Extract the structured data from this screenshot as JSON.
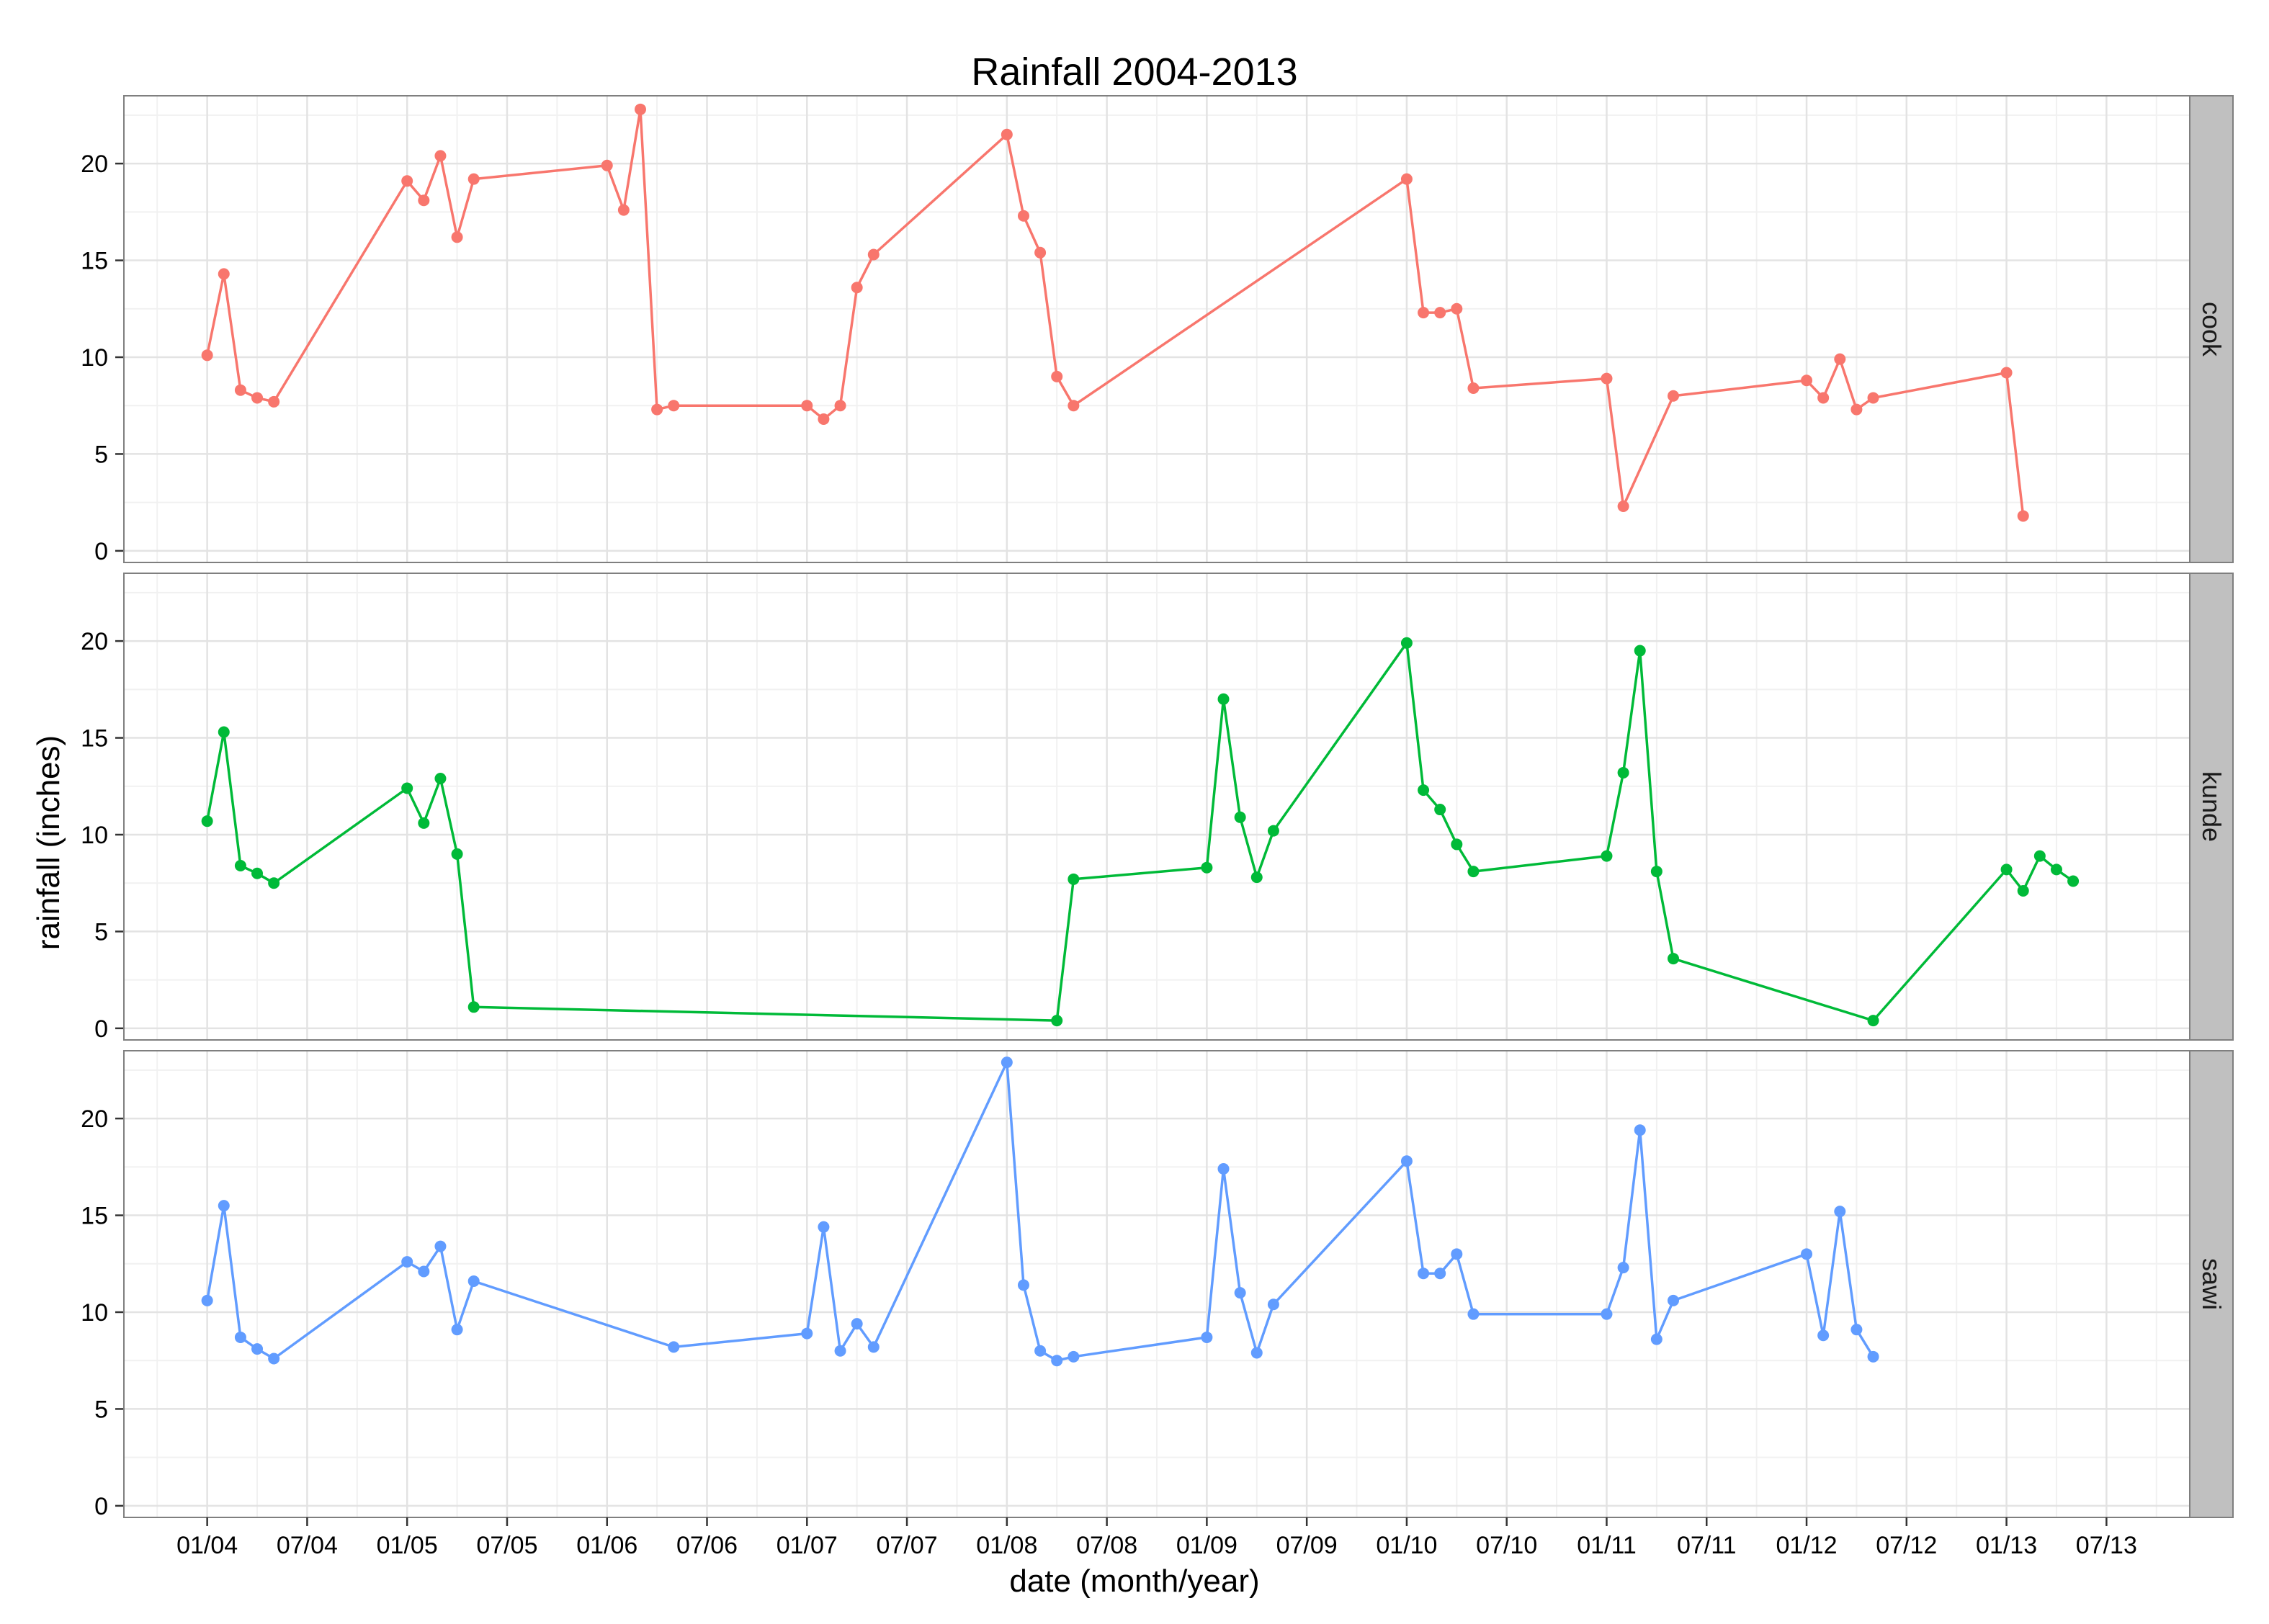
{
  "chart_data": {
    "type": "line",
    "title": "Rainfall 2004-2013",
    "xlabel": "date (month/year)",
    "ylabel": "rainfall (inches)",
    "x_tick_labels": [
      "01/04",
      "07/04",
      "01/05",
      "07/05",
      "01/06",
      "07/06",
      "01/07",
      "07/07",
      "01/08",
      "07/08",
      "01/09",
      "07/09",
      "01/10",
      "07/10",
      "01/11",
      "07/11",
      "01/12",
      "07/12",
      "01/13",
      "07/13"
    ],
    "x_tick_dates": [
      "2004-01",
      "2004-07",
      "2005-01",
      "2005-07",
      "2006-01",
      "2006-07",
      "2007-01",
      "2007-07",
      "2008-01",
      "2008-07",
      "2009-01",
      "2009-07",
      "2010-01",
      "2010-07",
      "2011-01",
      "2011-07",
      "2012-01",
      "2012-07",
      "2013-01",
      "2013-07"
    ],
    "xlim": [
      "2003-08",
      "2013-12"
    ],
    "ylim": [
      -0.6,
      23.5
    ],
    "y_ticks": [
      0,
      5,
      10,
      15,
      20
    ],
    "grid": true,
    "facets": "rows",
    "colors": {
      "cook": "#f8766d",
      "kunde": "#00ba38",
      "sawi": "#619cff",
      "strip": "#c0c0c0",
      "panel_border": "#7f7f7f",
      "grid_major": "#e3e3e3",
      "grid_minor": "#f1f1f1"
    },
    "series": [
      {
        "name": "cook",
        "points": [
          [
            "2004-01",
            10.1
          ],
          [
            "2004-02",
            14.3
          ],
          [
            "2004-03",
            8.3
          ],
          [
            "2004-04",
            7.9
          ],
          [
            "2004-05",
            7.7
          ],
          [
            "2005-01",
            19.1
          ],
          [
            "2005-02",
            18.1
          ],
          [
            "2005-03",
            20.4
          ],
          [
            "2005-04",
            16.2
          ],
          [
            "2005-05",
            19.2
          ],
          [
            "2006-01",
            19.9
          ],
          [
            "2006-02",
            17.6
          ],
          [
            "2006-03",
            22.8
          ],
          [
            "2006-04",
            7.3
          ],
          [
            "2006-05",
            7.5
          ],
          [
            "2007-01",
            7.5
          ],
          [
            "2007-02",
            6.8
          ],
          [
            "2007-03",
            7.5
          ],
          [
            "2007-04",
            13.6
          ],
          [
            "2007-05",
            15.3
          ],
          [
            "2008-01",
            21.5
          ],
          [
            "2008-02",
            17.3
          ],
          [
            "2008-03",
            15.4
          ],
          [
            "2008-04",
            9.0
          ],
          [
            "2008-05",
            7.5
          ],
          [
            "2010-01",
            19.2
          ],
          [
            "2010-02",
            12.3
          ],
          [
            "2010-03",
            12.3
          ],
          [
            "2010-04",
            12.5
          ],
          [
            "2010-05",
            8.4
          ],
          [
            "2011-01",
            8.9
          ],
          [
            "2011-02",
            2.3
          ],
          [
            "2011-05",
            8.0
          ],
          [
            "2012-01",
            8.8
          ],
          [
            "2012-02",
            7.9
          ],
          [
            "2012-03",
            9.9
          ],
          [
            "2012-04",
            7.3
          ],
          [
            "2012-05",
            7.9
          ],
          [
            "2013-01",
            9.2
          ],
          [
            "2013-02",
            1.8
          ]
        ]
      },
      {
        "name": "kunde",
        "points": [
          [
            "2004-01",
            10.7
          ],
          [
            "2004-02",
            15.3
          ],
          [
            "2004-03",
            8.4
          ],
          [
            "2004-04",
            8.0
          ],
          [
            "2004-05",
            7.5
          ],
          [
            "2005-01",
            12.4
          ],
          [
            "2005-02",
            10.6
          ],
          [
            "2005-03",
            12.9
          ],
          [
            "2005-04",
            9.0
          ],
          [
            "2005-05",
            1.1
          ],
          [
            "2008-04",
            0.4
          ],
          [
            "2008-05",
            7.7
          ],
          [
            "2009-01",
            8.3
          ],
          [
            "2009-02",
            17.0
          ],
          [
            "2009-03",
            10.9
          ],
          [
            "2009-04",
            7.8
          ],
          [
            "2009-05",
            10.2
          ],
          [
            "2010-01",
            19.9
          ],
          [
            "2010-02",
            12.3
          ],
          [
            "2010-03",
            11.3
          ],
          [
            "2010-04",
            9.5
          ],
          [
            "2010-05",
            8.1
          ],
          [
            "2011-01",
            8.9
          ],
          [
            "2011-02",
            13.2
          ],
          [
            "2011-03",
            19.5
          ],
          [
            "2011-04",
            8.1
          ],
          [
            "2011-05",
            3.6
          ],
          [
            "2012-05",
            0.4
          ],
          [
            "2013-01",
            8.2
          ],
          [
            "2013-02",
            7.1
          ],
          [
            "2013-03",
            8.9
          ],
          [
            "2013-04",
            8.2
          ],
          [
            "2013-05",
            7.6
          ]
        ]
      },
      {
        "name": "sawi",
        "points": [
          [
            "2004-01",
            10.6
          ],
          [
            "2004-02",
            15.5
          ],
          [
            "2004-03",
            8.7
          ],
          [
            "2004-04",
            8.1
          ],
          [
            "2004-05",
            7.6
          ],
          [
            "2005-01",
            12.6
          ],
          [
            "2005-02",
            12.1
          ],
          [
            "2005-03",
            13.4
          ],
          [
            "2005-04",
            9.1
          ],
          [
            "2005-05",
            11.6
          ],
          [
            "2006-05",
            8.2
          ],
          [
            "2007-01",
            8.9
          ],
          [
            "2007-02",
            14.4
          ],
          [
            "2007-03",
            8.0
          ],
          [
            "2007-04",
            9.4
          ],
          [
            "2007-05",
            8.2
          ],
          [
            "2008-01",
            22.9
          ],
          [
            "2008-02",
            11.4
          ],
          [
            "2008-03",
            8.0
          ],
          [
            "2008-04",
            7.5
          ],
          [
            "2008-05",
            7.7
          ],
          [
            "2009-01",
            8.7
          ],
          [
            "2009-02",
            17.4
          ],
          [
            "2009-03",
            11.0
          ],
          [
            "2009-04",
            7.9
          ],
          [
            "2009-05",
            10.4
          ],
          [
            "2010-01",
            17.8
          ],
          [
            "2010-02",
            12.0
          ],
          [
            "2010-03",
            12.0
          ],
          [
            "2010-04",
            13.0
          ],
          [
            "2010-05",
            9.9
          ],
          [
            "2011-01",
            9.9
          ],
          [
            "2011-02",
            12.3
          ],
          [
            "2011-03",
            19.4
          ],
          [
            "2011-04",
            8.6
          ],
          [
            "2011-05",
            10.6
          ],
          [
            "2012-01",
            13.0
          ],
          [
            "2012-02",
            8.8
          ],
          [
            "2012-03",
            15.2
          ],
          [
            "2012-04",
            9.1
          ],
          [
            "2012-05",
            7.7
          ]
        ]
      }
    ]
  }
}
